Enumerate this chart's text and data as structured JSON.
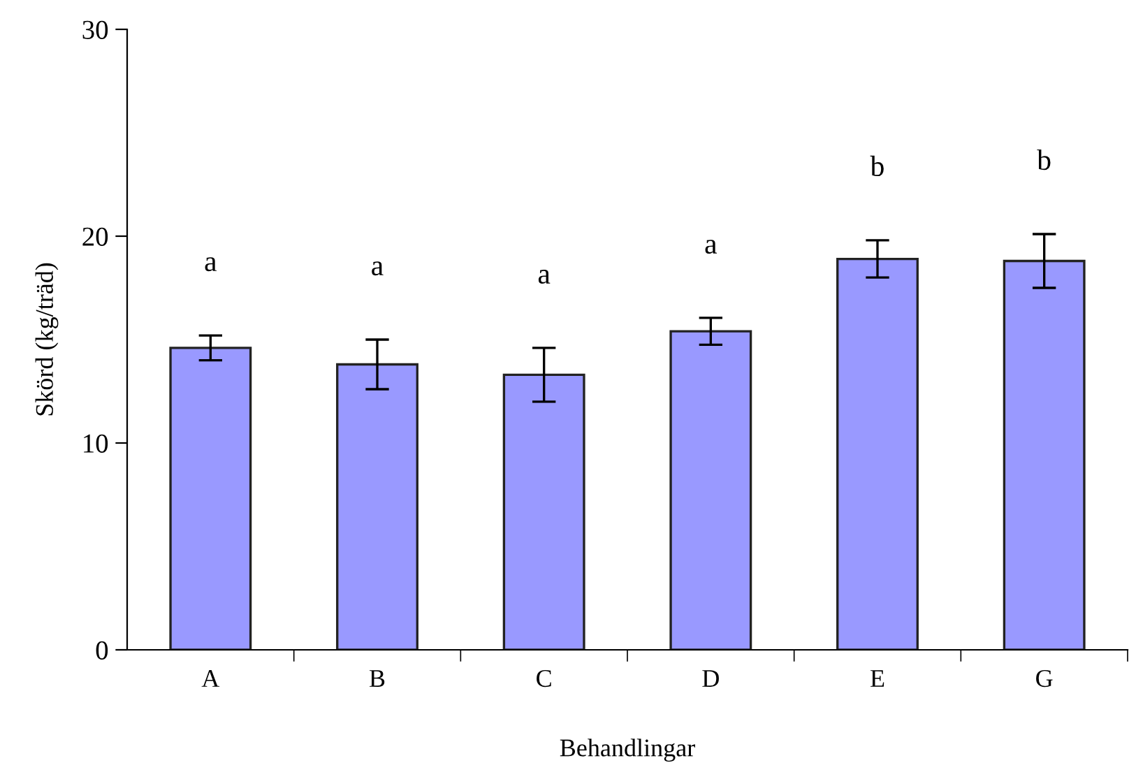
{
  "chart_data": {
    "type": "bar",
    "xlabel": "Behandlingar",
    "ylabel": "Skörd (kg/träd)",
    "categories": [
      "A",
      "B",
      "C",
      "D",
      "E",
      "G"
    ],
    "values": [
      14.6,
      13.8,
      13.3,
      15.4,
      18.9,
      18.8
    ],
    "errors": [
      0.6,
      1.2,
      1.3,
      0.65,
      0.9,
      1.3
    ],
    "color": "#9999ff",
    "ylim": [
      0,
      30
    ],
    "yticks": [
      0,
      10,
      20,
      30
    ],
    "grid": false,
    "annotations": [
      "a",
      "a",
      "a",
      "a",
      "b",
      "b"
    ]
  }
}
